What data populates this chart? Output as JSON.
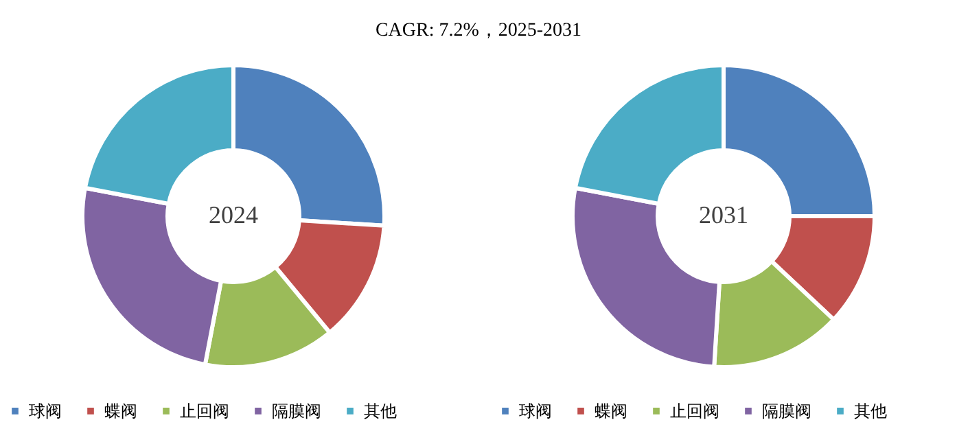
{
  "chart_data": [
    {
      "type": "donut",
      "title": "CAGR:  7.2%，2025-2031",
      "categories": [
        "球阀",
        "蝶阀",
        "止回阀",
        "隔膜阀",
        "其他"
      ],
      "values": [
        26,
        13,
        14,
        25,
        22
      ],
      "colors": [
        "#4f81bd",
        "#c0504d",
        "#9bbb59",
        "#8064a2",
        "#4bacc6"
      ],
      "annotations": [
        "2024"
      ],
      "legend": "bottom"
    },
    {
      "type": "donut",
      "categories": [
        "球阀",
        "蝶阀",
        "止回阀",
        "隔膜阀",
        "其他"
      ],
      "values": [
        25,
        12,
        14,
        27,
        22
      ],
      "colors": [
        "#4f81bd",
        "#c0504d",
        "#9bbb59",
        "#8064a2",
        "#4bacc6"
      ],
      "annotations": [
        "2031"
      ],
      "legend": "bottom"
    }
  ]
}
